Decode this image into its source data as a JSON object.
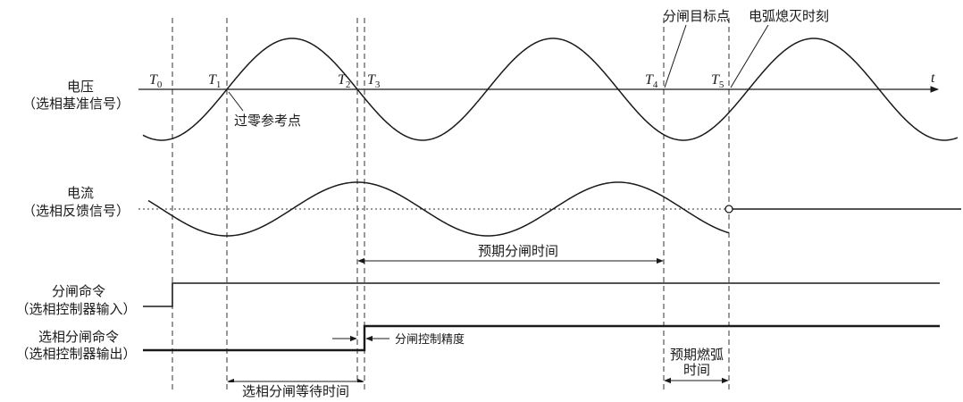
{
  "labels": {
    "voltage": "电压",
    "voltage_sub": "（选相基准信号）",
    "current": "电流",
    "current_sub": "（选相反馈信号）",
    "open_cmd": "分闸命令",
    "open_cmd_sub": "（选相控制器输入）",
    "sel_open_cmd": "选相分闸命令",
    "sel_open_cmd_sub": "（选相控制器输出）",
    "t_axis": "t"
  },
  "time_marks": [
    {
      "name": "T",
      "sub": "0"
    },
    {
      "name": "T",
      "sub": "1"
    },
    {
      "name": "T",
      "sub": "2"
    },
    {
      "name": "T",
      "sub": "3"
    },
    {
      "name": "T",
      "sub": "4"
    },
    {
      "name": "T",
      "sub": "5"
    }
  ],
  "annotations": {
    "zero_ref": "过零参考点",
    "open_target": "分闸目标点",
    "arc_extinct": "电弧熄灭时刻",
    "expected_open_time": "预期分闸时间",
    "open_precision": "分闸控制精度",
    "arc_time_line1": "预期燃弧",
    "arc_time_line2": "时间",
    "wait_time": "选相分闸等待时间"
  }
}
